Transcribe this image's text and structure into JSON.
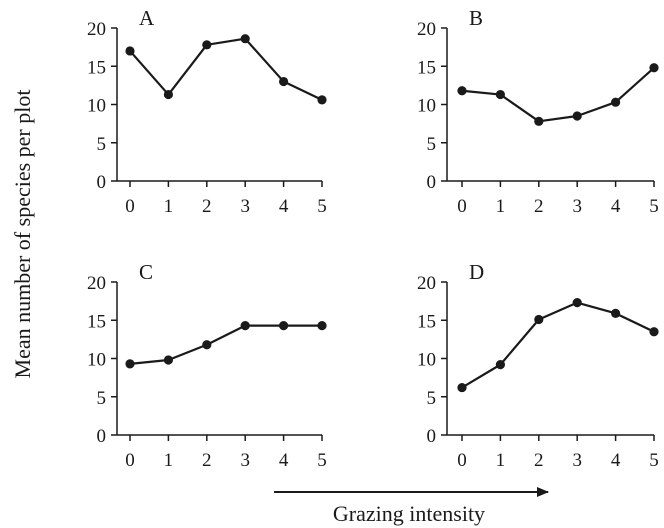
{
  "figure": {
    "ylabel": "Mean number of species per plot",
    "xlabel": "Grazing intensity"
  },
  "colors": {
    "ink": "#1a1a1a",
    "background": "#ffffff"
  },
  "chart_data": [
    {
      "type": "line",
      "panel_label": "A",
      "x": [
        0,
        1,
        2,
        3,
        4,
        5
      ],
      "x_tick_labels": [
        "0",
        "1",
        "2",
        "3",
        "4",
        "5"
      ],
      "y_tick_labels": [
        "0",
        "5",
        "10",
        "15",
        "20"
      ],
      "values": [
        17.0,
        11.3,
        17.8,
        18.6,
        13.0,
        10.6
      ],
      "ylim": [
        0,
        20
      ],
      "grid": false
    },
    {
      "type": "line",
      "panel_label": "B",
      "x": [
        0,
        1,
        2,
        3,
        4,
        5
      ],
      "x_tick_labels": [
        "0",
        "1",
        "2",
        "3",
        "4",
        "5"
      ],
      "y_tick_labels": [
        "0",
        "5",
        "10",
        "15",
        "20"
      ],
      "values": [
        11.8,
        11.3,
        7.8,
        8.5,
        10.3,
        14.8
      ],
      "ylim": [
        0,
        20
      ],
      "grid": false
    },
    {
      "type": "line",
      "panel_label": "C",
      "x": [
        0,
        1,
        2,
        3,
        4,
        5
      ],
      "x_tick_labels": [
        "0",
        "1",
        "2",
        "3",
        "4",
        "5"
      ],
      "y_tick_labels": [
        "0",
        "5",
        "10",
        "15",
        "20"
      ],
      "values": [
        9.3,
        9.8,
        11.8,
        14.3,
        14.3,
        14.3
      ],
      "ylim": [
        0,
        20
      ],
      "grid": false
    },
    {
      "type": "line",
      "panel_label": "D",
      "x": [
        0,
        1,
        2,
        3,
        4,
        5
      ],
      "x_tick_labels": [
        "0",
        "1",
        "2",
        "3",
        "4",
        "5"
      ],
      "y_tick_labels": [
        "0",
        "5",
        "10",
        "15",
        "20"
      ],
      "values": [
        6.2,
        9.2,
        15.1,
        17.3,
        15.9,
        13.5
      ],
      "ylim": [
        0,
        20
      ],
      "grid": false
    }
  ]
}
